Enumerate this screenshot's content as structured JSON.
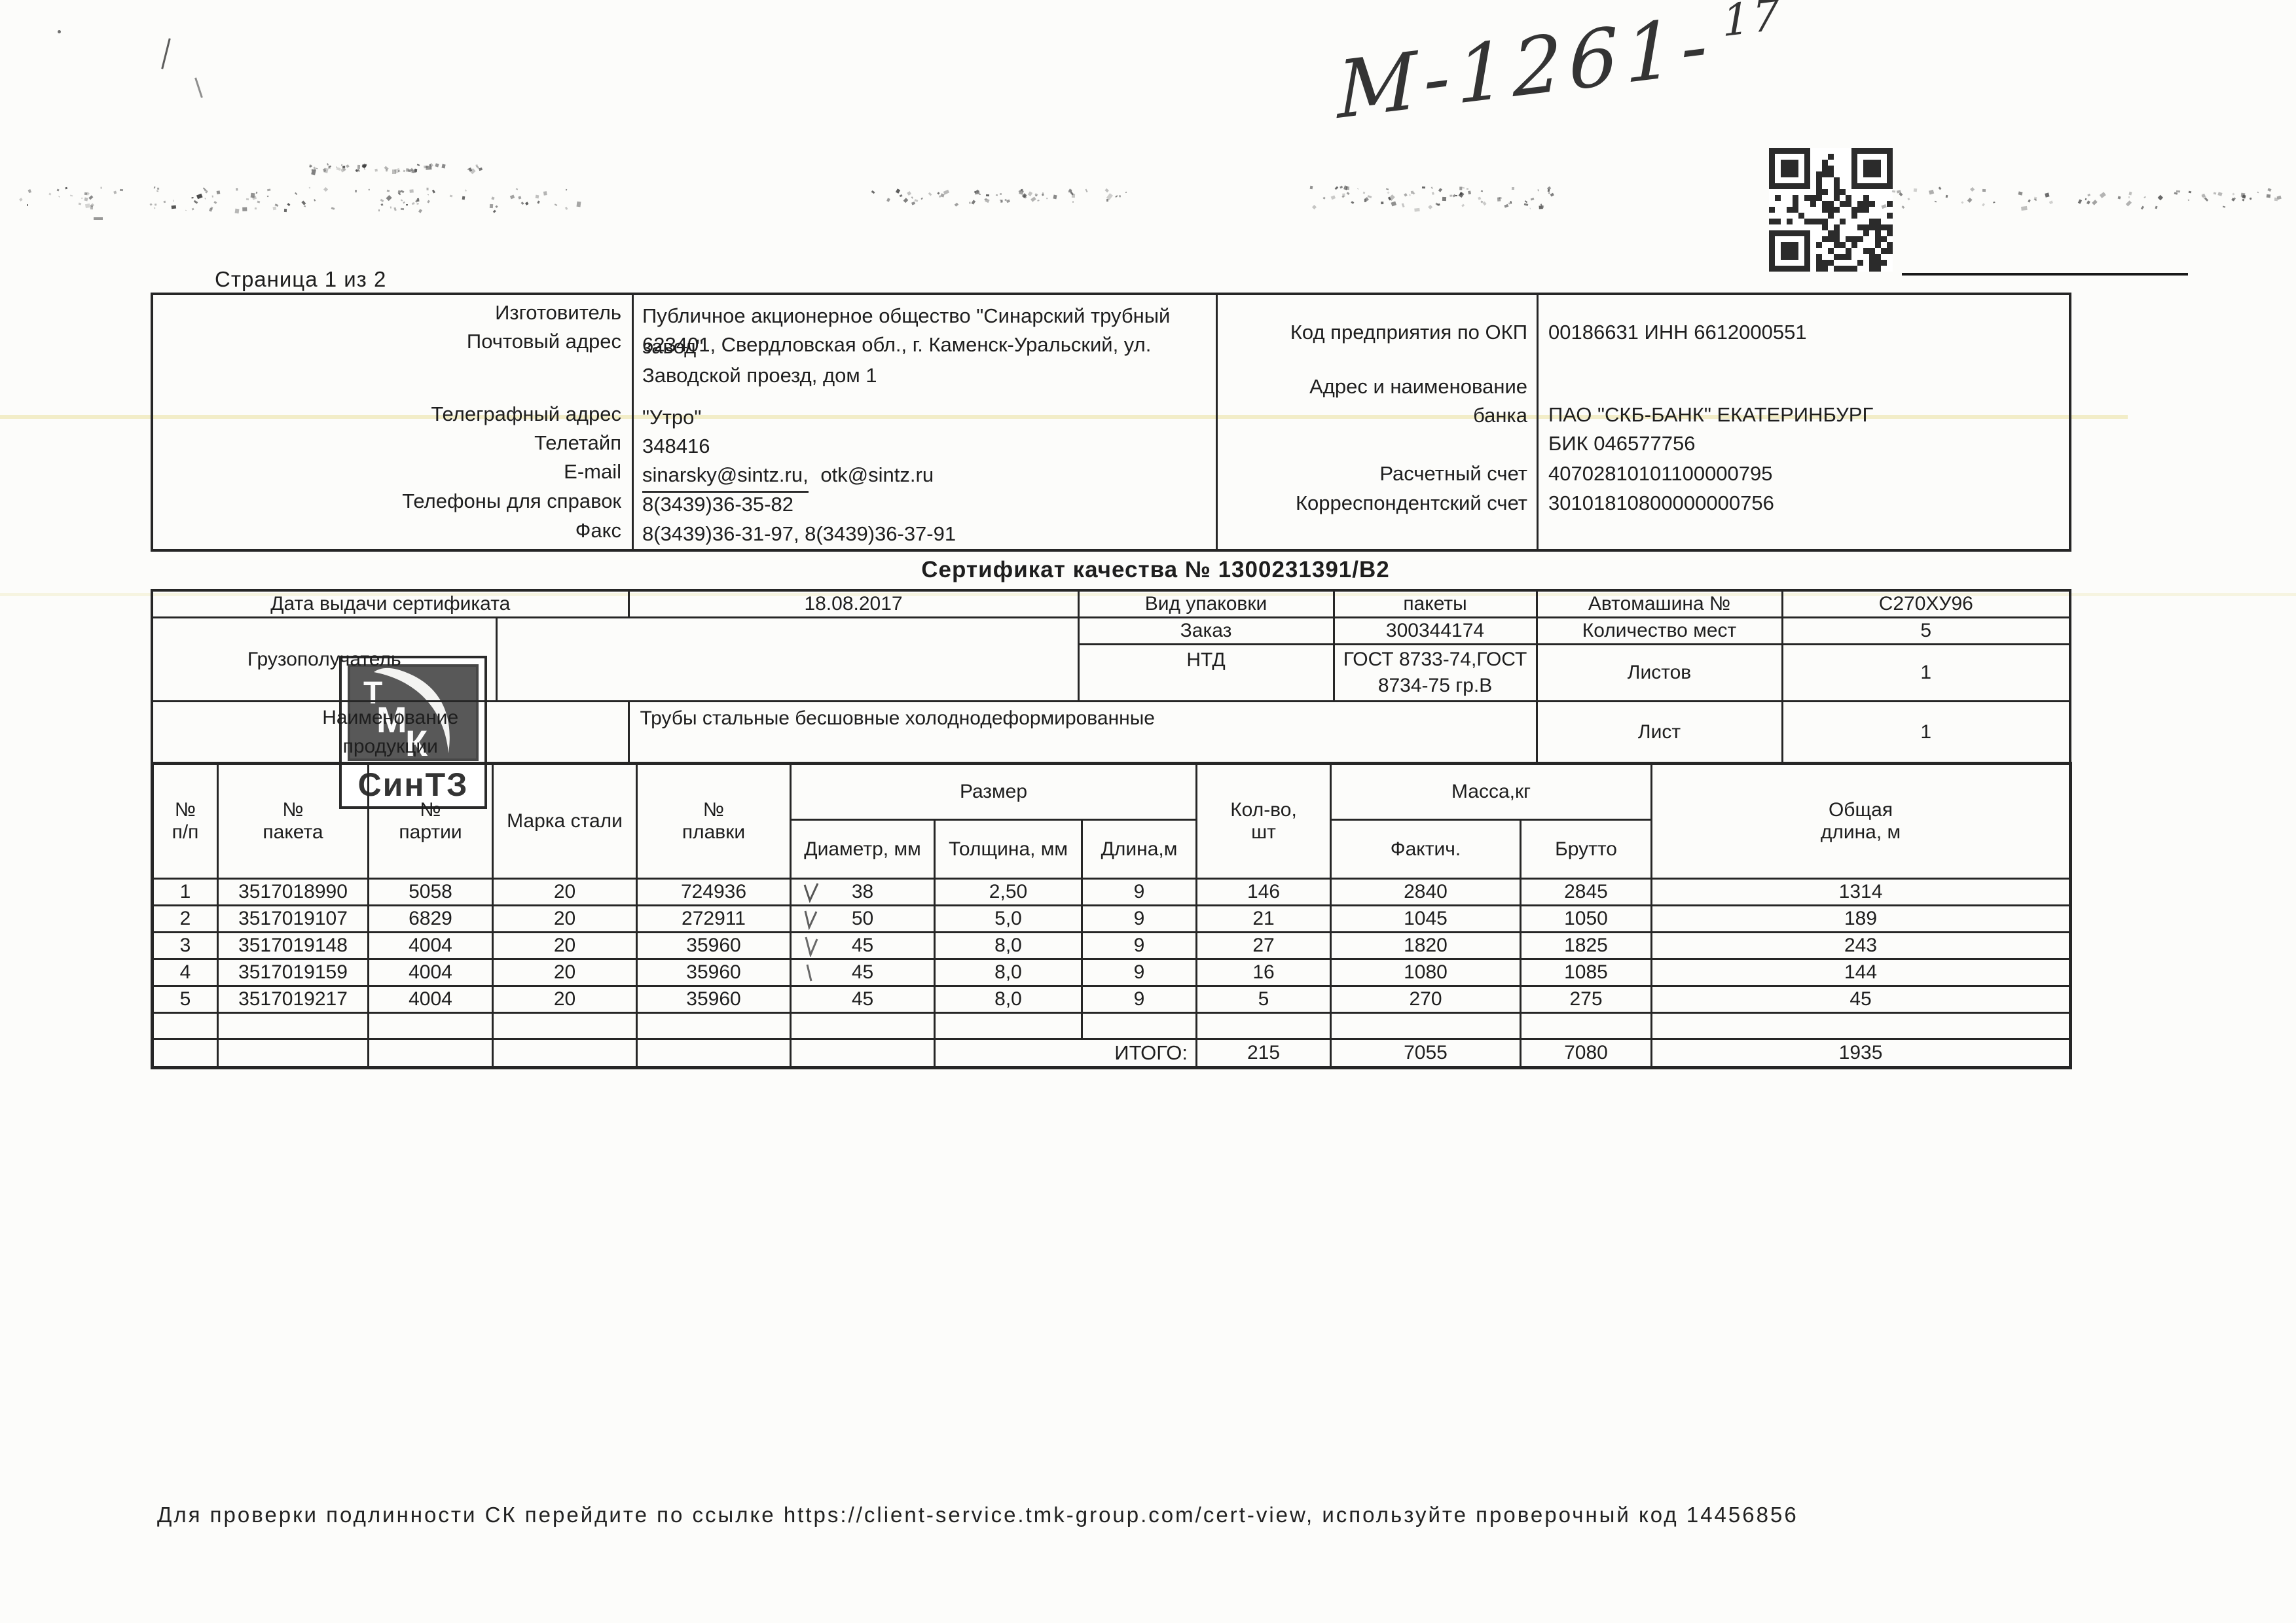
{
  "colors": {
    "ink": "#1e1e1e",
    "paper": "#fcfcfa",
    "accent_yellow_artifact": "#d6c748"
  },
  "scan": {
    "page_label": "Страница 1 из 2",
    "handwritten_note_main": "М-1261-",
    "handwritten_note_sup": "17"
  },
  "logo": {
    "t": "Т",
    "m": "М",
    "k": "К",
    "caption": "СинТЗ"
  },
  "manufacturer": {
    "maker_label": "Изготовитель",
    "maker_value": "Публичное акционерное общество \"Синарский трубный завод\"",
    "postal_label": "Почтовый адрес",
    "postal_value": "623401, Свердловская обл., г. Каменск-Уральский, ул.\nЗаводской проезд, дом 1",
    "telegraph_label": "Телеграфный адрес",
    "telegraph_value": "\"Утро\"",
    "teletype_label": "Телетайп",
    "teletype_value": "348416",
    "email_label": "E-mail",
    "email_value": "sinarsky@sintz.ru,",
    "email_value2": "otk@sintz.ru",
    "phones_label": "Телефоны для справок",
    "phones_value": "8(3439)36-35-82",
    "fax_label": "Факс",
    "fax_value": "8(3439)36-31-97, 8(3439)36-37-91"
  },
  "bank": {
    "okp_label": "Код предприятия по ОКП",
    "okp_value": "00186631 ИНН 6612000551",
    "bank_label": "Адрес и наименование\nбанка",
    "bank_value": "ПАО \"СКБ-БАНК\" ЕКАТЕРИНБУРГ\nБИК 046577756",
    "account_label": "Расчетный счет",
    "account_value": "40702810101100000795",
    "corr_label": "Корреспондентский счет",
    "corr_value": "30101810800000000756"
  },
  "title": "Сертификат качества № 1300231391/В2",
  "info": {
    "date_label": "Дата выдачи сертификата",
    "date_value": "18.08.2017",
    "packaging_label": "Вид упаковки",
    "packaging_value": "пакеты",
    "truck_label": "Автомашина №",
    "truck_value": "С270ХУ96",
    "consignee_label": "Грузополучатель",
    "consignee_value": "",
    "order_label": "Заказ",
    "order_value": "300344174",
    "places_label": "Количество мест",
    "places_value": "5",
    "ntd_label": "НТД",
    "ntd_value": "ГОСТ 8733-74,ГОСТ 8734-75 гр.В",
    "sheets_label": "Листов",
    "sheets_value": "1",
    "product_label": "Наименование\nпродукции",
    "product_value": "Трубы стальные бесшовные холоднодеформированные",
    "sheet_label": "Лист",
    "sheet_value": "1"
  },
  "table": {
    "headers": {
      "col_num": "№\nп/п",
      "col_packet": "№\nпакета",
      "col_batch": "№\nпартии",
      "col_steel": "Марка стали",
      "col_heat": "№\nплавки",
      "group_size": "Размер",
      "col_diameter": "Диаметр, мм",
      "col_thickness": "Толщина, мм",
      "col_length": "Длина,м",
      "col_qty": "Кол-во,\nшт",
      "group_mass": "Масса,кг",
      "col_fact": "Фактич.",
      "col_gross": "Брутто",
      "col_total_length": "Общая\nдлина, м"
    },
    "rows": [
      [
        "1",
        "3517018990",
        "5058",
        "20",
        "724936",
        "38",
        "2,50",
        "9",
        "146",
        "2840",
        "2845",
        "1314"
      ],
      [
        "2",
        "3517019107",
        "6829",
        "20",
        "272911",
        "50",
        "5,0",
        "9",
        "21",
        "1045",
        "1050",
        "189"
      ],
      [
        "3",
        "3517019148",
        "4004",
        "20",
        "35960",
        "45",
        "8,0",
        "9",
        "27",
        "1820",
        "1825",
        "243"
      ],
      [
        "4",
        "3517019159",
        "4004",
        "20",
        "35960",
        "45",
        "8,0",
        "9",
        "16",
        "1080",
        "1085",
        "144"
      ],
      [
        "5",
        "3517019217",
        "4004",
        "20",
        "35960",
        "45",
        "8,0",
        "9",
        "5",
        "270",
        "275",
        "45"
      ]
    ],
    "total_label": "ИТОГО:",
    "totals": {
      "qty": "215",
      "fact": "7055",
      "gross": "7080",
      "length": "1935"
    }
  },
  "footer": "Для проверки подлинности СК перейдите по ссылке https://client-service.tmk-group.com/cert-view, используйте проверочный код 14456856"
}
